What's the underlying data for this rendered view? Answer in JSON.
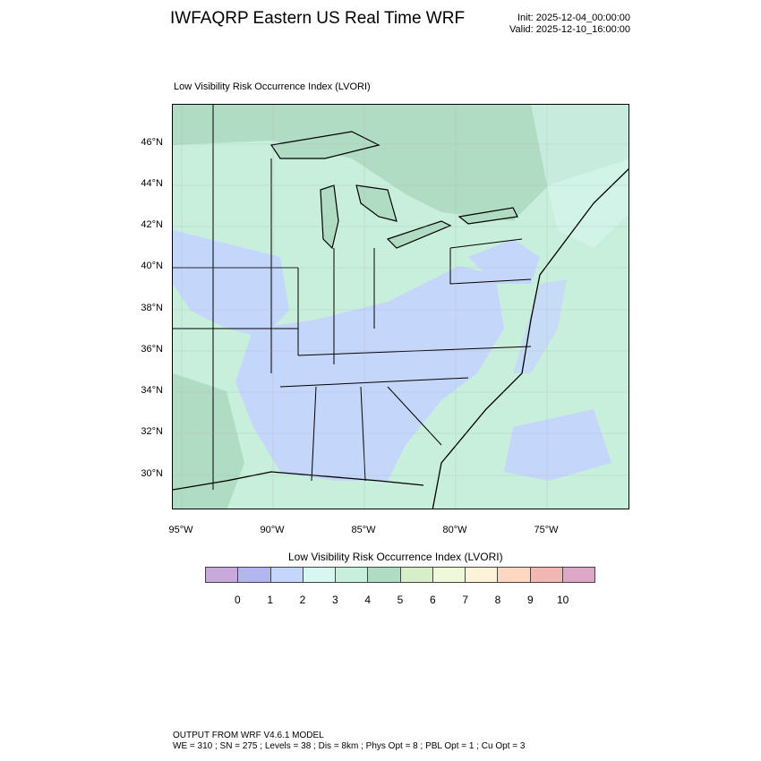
{
  "header": {
    "title": "IWFAQRP Eastern US Real Time WRF",
    "init": "Init: 2025-12-04_00:00:00",
    "valid": "Valid: 2025-12-10_16:00:00"
  },
  "map": {
    "subtitle": "Low Visibility Risk Occurrence Index   (LVORI)",
    "lat_labels": [
      "46°N",
      "44°N",
      "42°N",
      "40°N",
      "38°N",
      "36°N",
      "34°N",
      "32°N",
      "30°N"
    ],
    "lon_labels": [
      "95°W",
      "90°W",
      "85°W",
      "80°W",
      "75°W"
    ]
  },
  "colorbar": {
    "title": "Low Visibility Risk Occurrence Index  (LVORI)",
    "labels": [
      "0",
      "1",
      "2",
      "3",
      "4",
      "5",
      "6",
      "7",
      "8",
      "9",
      "10"
    ],
    "colors": [
      "#c9a9db",
      "#b3b6ee",
      "#c5d6fb",
      "#d7f7f0",
      "#c8eedc",
      "#b0dcc4",
      "#d8eec8",
      "#eff8d8",
      "#fff2d8",
      "#fdd7c1",
      "#f0b7b3",
      "#dda7c7"
    ]
  },
  "footer": {
    "line1": "OUTPUT FROM WRF V4.6.1 MODEL",
    "line2": "WE = 310 ; SN = 275 ; Levels = 38 ; Dis = 8km ; Phys Opt = 8 ; PBL Opt = 1 ; Cu Opt = 3"
  }
}
